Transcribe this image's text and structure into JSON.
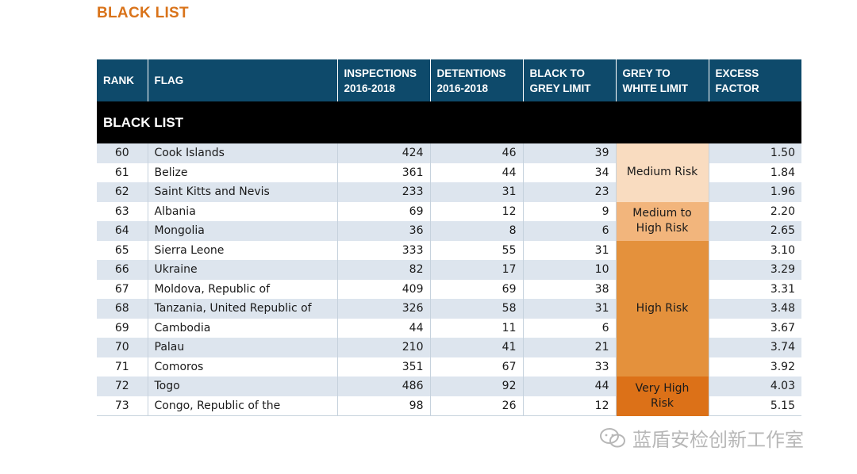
{
  "page_title": "BLACK LIST",
  "headers": {
    "rank": "RANK",
    "flag": "FLAG",
    "inspections_1": "INSPECTIONS",
    "inspections_2": "2016-2018",
    "detentions_1": "DETENTIONS",
    "detentions_2": "2016-2018",
    "black_to_grey_1": "BLACK TO",
    "black_to_grey_2": "GREY LIMIT",
    "grey_to_white_1": "GREY TO",
    "grey_to_white_2": "WHITE LIMIT",
    "excess_1": "EXCESS",
    "excess_2": "FACTOR"
  },
  "section_label": "BLACK LIST",
  "rows": [
    {
      "rank": "60",
      "flag": "Cook Islands",
      "inspections": "424",
      "detentions": "46",
      "black_to_grey": "39",
      "excess": "1.50"
    },
    {
      "rank": "61",
      "flag": "Belize",
      "inspections": "361",
      "detentions": "44",
      "black_to_grey": "34",
      "excess": "1.84"
    },
    {
      "rank": "62",
      "flag": "Saint Kitts and Nevis",
      "inspections": "233",
      "detentions": "31",
      "black_to_grey": "23",
      "excess": "1.96"
    },
    {
      "rank": "63",
      "flag": "Albania",
      "inspections": "69",
      "detentions": "12",
      "black_to_grey": "9",
      "excess": "2.20"
    },
    {
      "rank": "64",
      "flag": "Mongolia",
      "inspections": "36",
      "detentions": "8",
      "black_to_grey": "6",
      "excess": "2.65"
    },
    {
      "rank": "65",
      "flag": "Sierra Leone",
      "inspections": "333",
      "detentions": "55",
      "black_to_grey": "31",
      "excess": "3.10"
    },
    {
      "rank": "66",
      "flag": "Ukraine",
      "inspections": "82",
      "detentions": "17",
      "black_to_grey": "10",
      "excess": "3.29"
    },
    {
      "rank": "67",
      "flag": "Moldova, Republic of",
      "inspections": "409",
      "detentions": "69",
      "black_to_grey": "38",
      "excess": "3.31"
    },
    {
      "rank": "68",
      "flag": "Tanzania, United Republic of",
      "inspections": "326",
      "detentions": "58",
      "black_to_grey": "31",
      "excess": "3.48"
    },
    {
      "rank": "69",
      "flag": "Cambodia",
      "inspections": "44",
      "detentions": "11",
      "black_to_grey": "6",
      "excess": "3.67"
    },
    {
      "rank": "70",
      "flag": "Palau",
      "inspections": "210",
      "detentions": "41",
      "black_to_grey": "21",
      "excess": "3.74"
    },
    {
      "rank": "71",
      "flag": "Comoros",
      "inspections": "351",
      "detentions": "67",
      "black_to_grey": "33",
      "excess": "3.92"
    },
    {
      "rank": "72",
      "flag": "Togo",
      "inspections": "486",
      "detentions": "92",
      "black_to_grey": "44",
      "excess": "4.03"
    },
    {
      "rank": "73",
      "flag": "Congo, Republic of the",
      "inspections": "98",
      "detentions": "26",
      "black_to_grey": "12",
      "excess": "5.15"
    }
  ],
  "risk_groups": [
    {
      "label": "Medium Risk",
      "start": 0,
      "span": 3,
      "color": "#f9dcc0"
    },
    {
      "label": "Medium to High Risk",
      "start": 3,
      "span": 2,
      "color": "#f2b57c"
    },
    {
      "label": "High Risk",
      "start": 5,
      "span": 7,
      "color": "#e4913c"
    },
    {
      "label": "Very High Risk",
      "start": 12,
      "span": 2,
      "color": "#dc7118"
    }
  ],
  "colors": {
    "title": "#d9731a",
    "header_bg": "#0e4a6b",
    "section_bg": "#000000",
    "row_alt": "#dde5ee"
  },
  "watermark": {
    "icon": "wechat-icon",
    "text": "蓝盾安检创新工作室"
  }
}
